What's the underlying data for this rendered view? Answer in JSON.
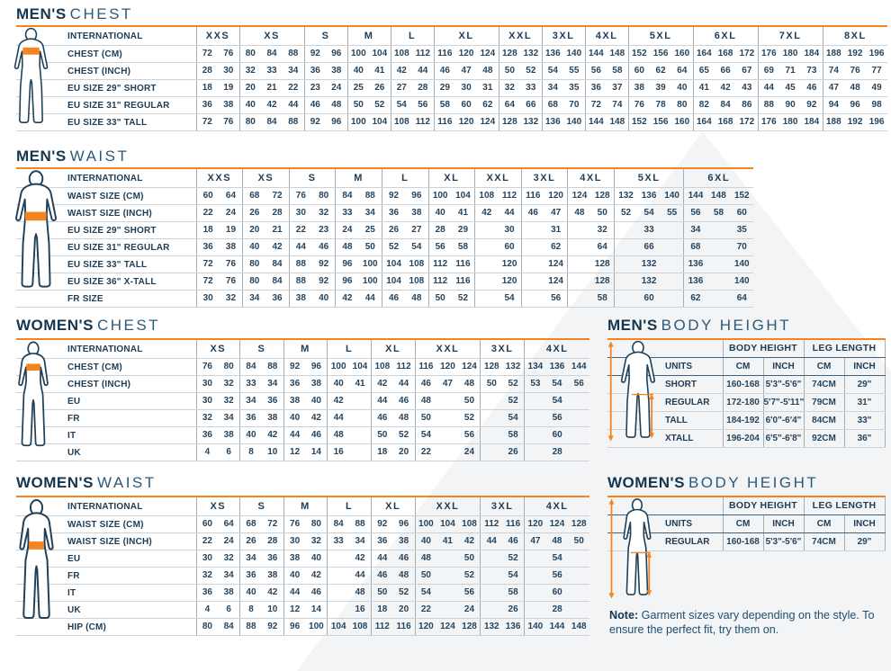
{
  "colors": {
    "navy": "#1d3c55",
    "title_light_navy": "#2c5a7a",
    "orange": "#f5831f",
    "grid_gray": "#ccd2d7",
    "grid_dark": "#41617c",
    "watermark": "#f2f4f6"
  },
  "note": {
    "label": "Note:",
    "text": " Garment sizes vary depending on the style. To ensure the perfect fit, try them on."
  },
  "mens_chest": {
    "title_bold": "MEN'S",
    "title_light": "CHEST",
    "corner_label": "INTERNATIONAL",
    "groups": [
      {
        "label": "XXS",
        "span": 2
      },
      {
        "label": "XS",
        "span": 3
      },
      {
        "label": "S",
        "span": 2
      },
      {
        "label": "M",
        "span": 2
      },
      {
        "label": "L",
        "span": 2
      },
      {
        "label": "XL",
        "span": 3
      },
      {
        "label": "XXL",
        "span": 2
      },
      {
        "label": "3XL",
        "span": 2
      },
      {
        "label": "4XL",
        "span": 2
      },
      {
        "label": "5XL",
        "span": 3
      },
      {
        "label": "6XL",
        "span": 3
      },
      {
        "label": "7XL",
        "span": 3
      },
      {
        "label": "8XL",
        "span": 3
      }
    ],
    "rows": [
      {
        "label": "CHEST (CM)",
        "cells": [
          "72",
          "76",
          "80",
          "84",
          "88",
          "92",
          "96",
          "100",
          "104",
          "108",
          "112",
          "116",
          "120",
          "124",
          "128",
          "132",
          "136",
          "140",
          "144",
          "148",
          "152",
          "156",
          "160",
          "164",
          "168",
          "172",
          "176",
          "180",
          "184",
          "188",
          "192",
          "196"
        ]
      },
      {
        "label": "CHEST (INCH)",
        "cells": [
          "28",
          "30",
          "32",
          "33",
          "34",
          "36",
          "38",
          "40",
          "41",
          "42",
          "44",
          "46",
          "47",
          "48",
          "50",
          "52",
          "54",
          "55",
          "56",
          "58",
          "60",
          "62",
          "64",
          "65",
          "66",
          "67",
          "69",
          "71",
          "73",
          "74",
          "76",
          "77"
        ]
      },
      {
        "label": "EU SIZE 29\" SHORT",
        "cells": [
          "18",
          "19",
          "20",
          "21",
          "22",
          "23",
          "24",
          "25",
          "26",
          "27",
          "28",
          "29",
          "30",
          "31",
          "32",
          "33",
          "34",
          "35",
          "36",
          "37",
          "38",
          "39",
          "40",
          "41",
          "42",
          "43",
          "44",
          "45",
          "46",
          "47",
          "48",
          "49"
        ]
      },
      {
        "label": "EU SIZE 31\" REGULAR",
        "cells": [
          "36",
          "38",
          "40",
          "42",
          "44",
          "46",
          "48",
          "50",
          "52",
          "54",
          "56",
          "58",
          "60",
          "62",
          "64",
          "66",
          "68",
          "70",
          "72",
          "74",
          "76",
          "78",
          "80",
          "82",
          "84",
          "86",
          "88",
          "90",
          "92",
          "94",
          "96",
          "98"
        ]
      },
      {
        "label": "EU SIZE 33\" TALL",
        "cells": [
          "72",
          "76",
          "80",
          "84",
          "88",
          "92",
          "96",
          "100",
          "104",
          "108",
          "112",
          "116",
          "120",
          "124",
          "128",
          "132",
          "136",
          "140",
          "144",
          "148",
          "152",
          "156",
          "160",
          "164",
          "168",
          "172",
          "176",
          "180",
          "184",
          "188",
          "192",
          "196"
        ]
      }
    ]
  },
  "mens_waist": {
    "title_bold": "MEN'S",
    "title_light": "WAIST",
    "corner_label": "INTERNATIONAL",
    "groups": [
      {
        "label": "XXS",
        "span": 2
      },
      {
        "label": "XS",
        "span": 2
      },
      {
        "label": "S",
        "span": 2
      },
      {
        "label": "M",
        "span": 2
      },
      {
        "label": "L",
        "span": 2
      },
      {
        "label": "XL",
        "span": 2
      },
      {
        "label": "XXL",
        "span": 2
      },
      {
        "label": "3XL",
        "span": 2
      },
      {
        "label": "4XL",
        "span": 2
      },
      {
        "label": "5XL",
        "span": 3
      },
      {
        "label": "6XL",
        "span": 3
      }
    ],
    "rows": [
      {
        "label": "WAIST SIZE (CM)",
        "cells": [
          "60",
          "64",
          "68",
          "72",
          "76",
          "80",
          "84",
          "88",
          "92",
          "96",
          "100",
          "104",
          "108",
          "112",
          "116",
          "120",
          "124",
          "128",
          "132",
          "136",
          "140",
          "144",
          "148",
          "152"
        ]
      },
      {
        "label": "WAIST SIZE (INCH)",
        "cells": [
          "22",
          "24",
          "26",
          "28",
          "30",
          "32",
          "33",
          "34",
          "36",
          "38",
          "40",
          "41",
          "42",
          "44",
          "46",
          "47",
          "48",
          "50",
          "52",
          "54",
          "55",
          "56",
          "58",
          "60"
        ]
      },
      {
        "label": "EU SIZE 29\" SHORT",
        "cells": [
          "18",
          "19",
          "20",
          "21",
          "22",
          "23",
          "24",
          "25",
          "26",
          "27",
          "28",
          "29",
          "",
          "30",
          "",
          "31",
          "",
          "32",
          {
            "v": "33",
            "s": 3
          },
          "34",
          "",
          "35"
        ]
      },
      {
        "label": "EU SIZE 31\" REGULAR",
        "cells": [
          "36",
          "38",
          "40",
          "42",
          "44",
          "46",
          "48",
          "50",
          "52",
          "54",
          "56",
          "58",
          "",
          "60",
          "",
          "62",
          "",
          "64",
          {
            "v": "66",
            "s": 3
          },
          "68",
          "",
          "70"
        ]
      },
      {
        "label": "EU SIZE 33\" TALL",
        "cells": [
          "72",
          "76",
          "80",
          "84",
          "88",
          "92",
          "96",
          "100",
          "104",
          "108",
          "112",
          "116",
          "",
          "120",
          "",
          "124",
          "",
          "128",
          {
            "v": "132",
            "s": 3
          },
          "136",
          "",
          "140"
        ]
      },
      {
        "label": "EU SIZE 36\" X-TALL",
        "cells": [
          "72",
          "76",
          "80",
          "84",
          "88",
          "92",
          "96",
          "100",
          "104",
          "108",
          "112",
          "116",
          "",
          "120",
          "",
          "124",
          "",
          "128",
          {
            "v": "132",
            "s": 3
          },
          "136",
          "",
          "140"
        ]
      },
      {
        "label": "FR SIZE",
        "cells": [
          "30",
          "32",
          "34",
          "36",
          "38",
          "40",
          "42",
          "44",
          "46",
          "48",
          "50",
          "52",
          "",
          "54",
          "",
          "56",
          "",
          "58",
          {
            "v": "60",
            "s": 3
          },
          "62",
          "",
          "64"
        ]
      }
    ]
  },
  "womens_chest": {
    "title_bold": "WOMEN'S",
    "title_light": "CHEST",
    "corner_label": "INTERNATIONAL",
    "groups": [
      {
        "label": "XS",
        "span": 2
      },
      {
        "label": "S",
        "span": 2
      },
      {
        "label": "M",
        "span": 2
      },
      {
        "label": "L",
        "span": 2
      },
      {
        "label": "XL",
        "span": 2
      },
      {
        "label": "XXL",
        "span": 3
      },
      {
        "label": "3XL",
        "span": 2
      },
      {
        "label": "4XL",
        "span": 3
      }
    ],
    "rows": [
      {
        "label": "CHEST (CM)",
        "cells": [
          "76",
          "80",
          "84",
          "88",
          "92",
          "96",
          "100",
          "104",
          "108",
          "112",
          "116",
          "120",
          "124",
          "128",
          "132",
          "134",
          "136",
          "144"
        ]
      },
      {
        "label": "CHEST (INCH)",
        "cells": [
          "30",
          "32",
          "33",
          "34",
          "36",
          "38",
          "40",
          "41",
          "42",
          "44",
          "46",
          "47",
          "48",
          "50",
          "52",
          "53",
          "54",
          "56"
        ]
      },
      {
        "label": "EU",
        "cells": [
          "30",
          "32",
          "34",
          "36",
          "38",
          "40",
          "42",
          "",
          "44",
          "46",
          "48",
          "",
          "50",
          "",
          "52",
          {
            "v": "54",
            "s": 3
          }
        ]
      },
      {
        "label": "FR",
        "cells": [
          "32",
          "34",
          "36",
          "38",
          "40",
          "42",
          "44",
          "",
          "46",
          "48",
          "50",
          "",
          "52",
          "",
          "54",
          {
            "v": "56",
            "s": 3
          }
        ]
      },
      {
        "label": "IT",
        "cells": [
          "36",
          "38",
          "40",
          "42",
          "44",
          "46",
          "48",
          "",
          "50",
          "52",
          "54",
          "",
          "56",
          "",
          "58",
          {
            "v": "60",
            "s": 3
          }
        ]
      },
      {
        "label": "UK",
        "cells": [
          "4",
          "6",
          "8",
          "10",
          "12",
          "14",
          "16",
          "",
          "18",
          "20",
          "22",
          "",
          "24",
          "",
          "26",
          {
            "v": "28",
            "s": 3
          }
        ]
      }
    ]
  },
  "womens_waist": {
    "title_bold": "WOMEN'S",
    "title_light": "WAIST",
    "corner_label": "INTERNATIONAL",
    "groups": [
      {
        "label": "XS",
        "span": 2
      },
      {
        "label": "S",
        "span": 2
      },
      {
        "label": "M",
        "span": 2
      },
      {
        "label": "L",
        "span": 2
      },
      {
        "label": "XL",
        "span": 2
      },
      {
        "label": "XXL",
        "span": 3
      },
      {
        "label": "3XL",
        "span": 2
      },
      {
        "label": "4XL",
        "span": 3
      }
    ],
    "rows": [
      {
        "label": "WAIST SIZE (CM)",
        "cells": [
          "60",
          "64",
          "68",
          "72",
          "76",
          "80",
          "84",
          "88",
          "92",
          "96",
          "100",
          "104",
          "108",
          "112",
          "116",
          "120",
          "124",
          "128"
        ]
      },
      {
        "label": "WAIST SIZE (INCH)",
        "cells": [
          "22",
          "24",
          "26",
          "28",
          "30",
          "32",
          "33",
          "34",
          "36",
          "38",
          "40",
          "41",
          "42",
          "44",
          "46",
          "47",
          "48",
          "50"
        ]
      },
      {
        "label": "EU",
        "cells": [
          "30",
          "32",
          "34",
          "36",
          "38",
          "40",
          "",
          "42",
          "44",
          "46",
          "48",
          "",
          "50",
          "",
          "52",
          {
            "v": "54",
            "s": 3
          }
        ]
      },
      {
        "label": "FR",
        "cells": [
          "32",
          "34",
          "36",
          "38",
          "40",
          "42",
          "",
          "44",
          "46",
          "48",
          "50",
          "",
          "52",
          "",
          "54",
          {
            "v": "56",
            "s": 3
          }
        ]
      },
      {
        "label": "IT",
        "cells": [
          "36",
          "38",
          "40",
          "42",
          "44",
          "46",
          "",
          "48",
          "50",
          "52",
          "54",
          "",
          "56",
          "",
          "58",
          {
            "v": "60",
            "s": 3
          }
        ]
      },
      {
        "label": "UK",
        "cells": [
          "4",
          "6",
          "8",
          "10",
          "12",
          "14",
          "",
          "16",
          "18",
          "20",
          "22",
          "",
          "24",
          "",
          "26",
          {
            "v": "28",
            "s": 3
          }
        ]
      },
      {
        "label": "HIP (CM)",
        "cells": [
          "80",
          "84",
          "88",
          "92",
          "96",
          "100",
          "104",
          "108",
          "112",
          "116",
          "120",
          "124",
          "128",
          "132",
          "136",
          "140",
          "144",
          "148"
        ]
      }
    ]
  },
  "mens_body_height": {
    "title_bold": "MEN'S",
    "title_light": "BODY HEIGHT",
    "col_headers": [
      "BODY HEIGHT",
      "LEG LENGTH"
    ],
    "units_label": "UNITS",
    "units": [
      "CM",
      "INCH",
      "CM",
      "INCH"
    ],
    "rows": [
      {
        "label": "SHORT",
        "values": [
          "160-168",
          "5'3\"-5'6\"",
          "74CM",
          "29\""
        ]
      },
      {
        "label": "REGULAR",
        "values": [
          "172-180",
          "5'7\"-5'11\"",
          "79CM",
          "31\""
        ]
      },
      {
        "label": "TALL",
        "values": [
          "184-192",
          "6'0\"-6'4\"",
          "84CM",
          "33\""
        ]
      },
      {
        "label": "XTALL",
        "values": [
          "196-204",
          "6'5\"-6'8\"",
          "92CM",
          "36\""
        ]
      }
    ]
  },
  "womens_body_height": {
    "title_bold": "WOMEN'S",
    "title_light": "BODY HEIGHT",
    "col_headers": [
      "BODY HEIGHT",
      "LEG LENGTH"
    ],
    "units_label": "UNITS",
    "units": [
      "CM",
      "INCH",
      "CM",
      "INCH"
    ],
    "rows": [
      {
        "label": "REGULAR",
        "values": [
          "160-168",
          "5'3\"-5'6\"",
          "74CM",
          "29\""
        ]
      }
    ]
  }
}
